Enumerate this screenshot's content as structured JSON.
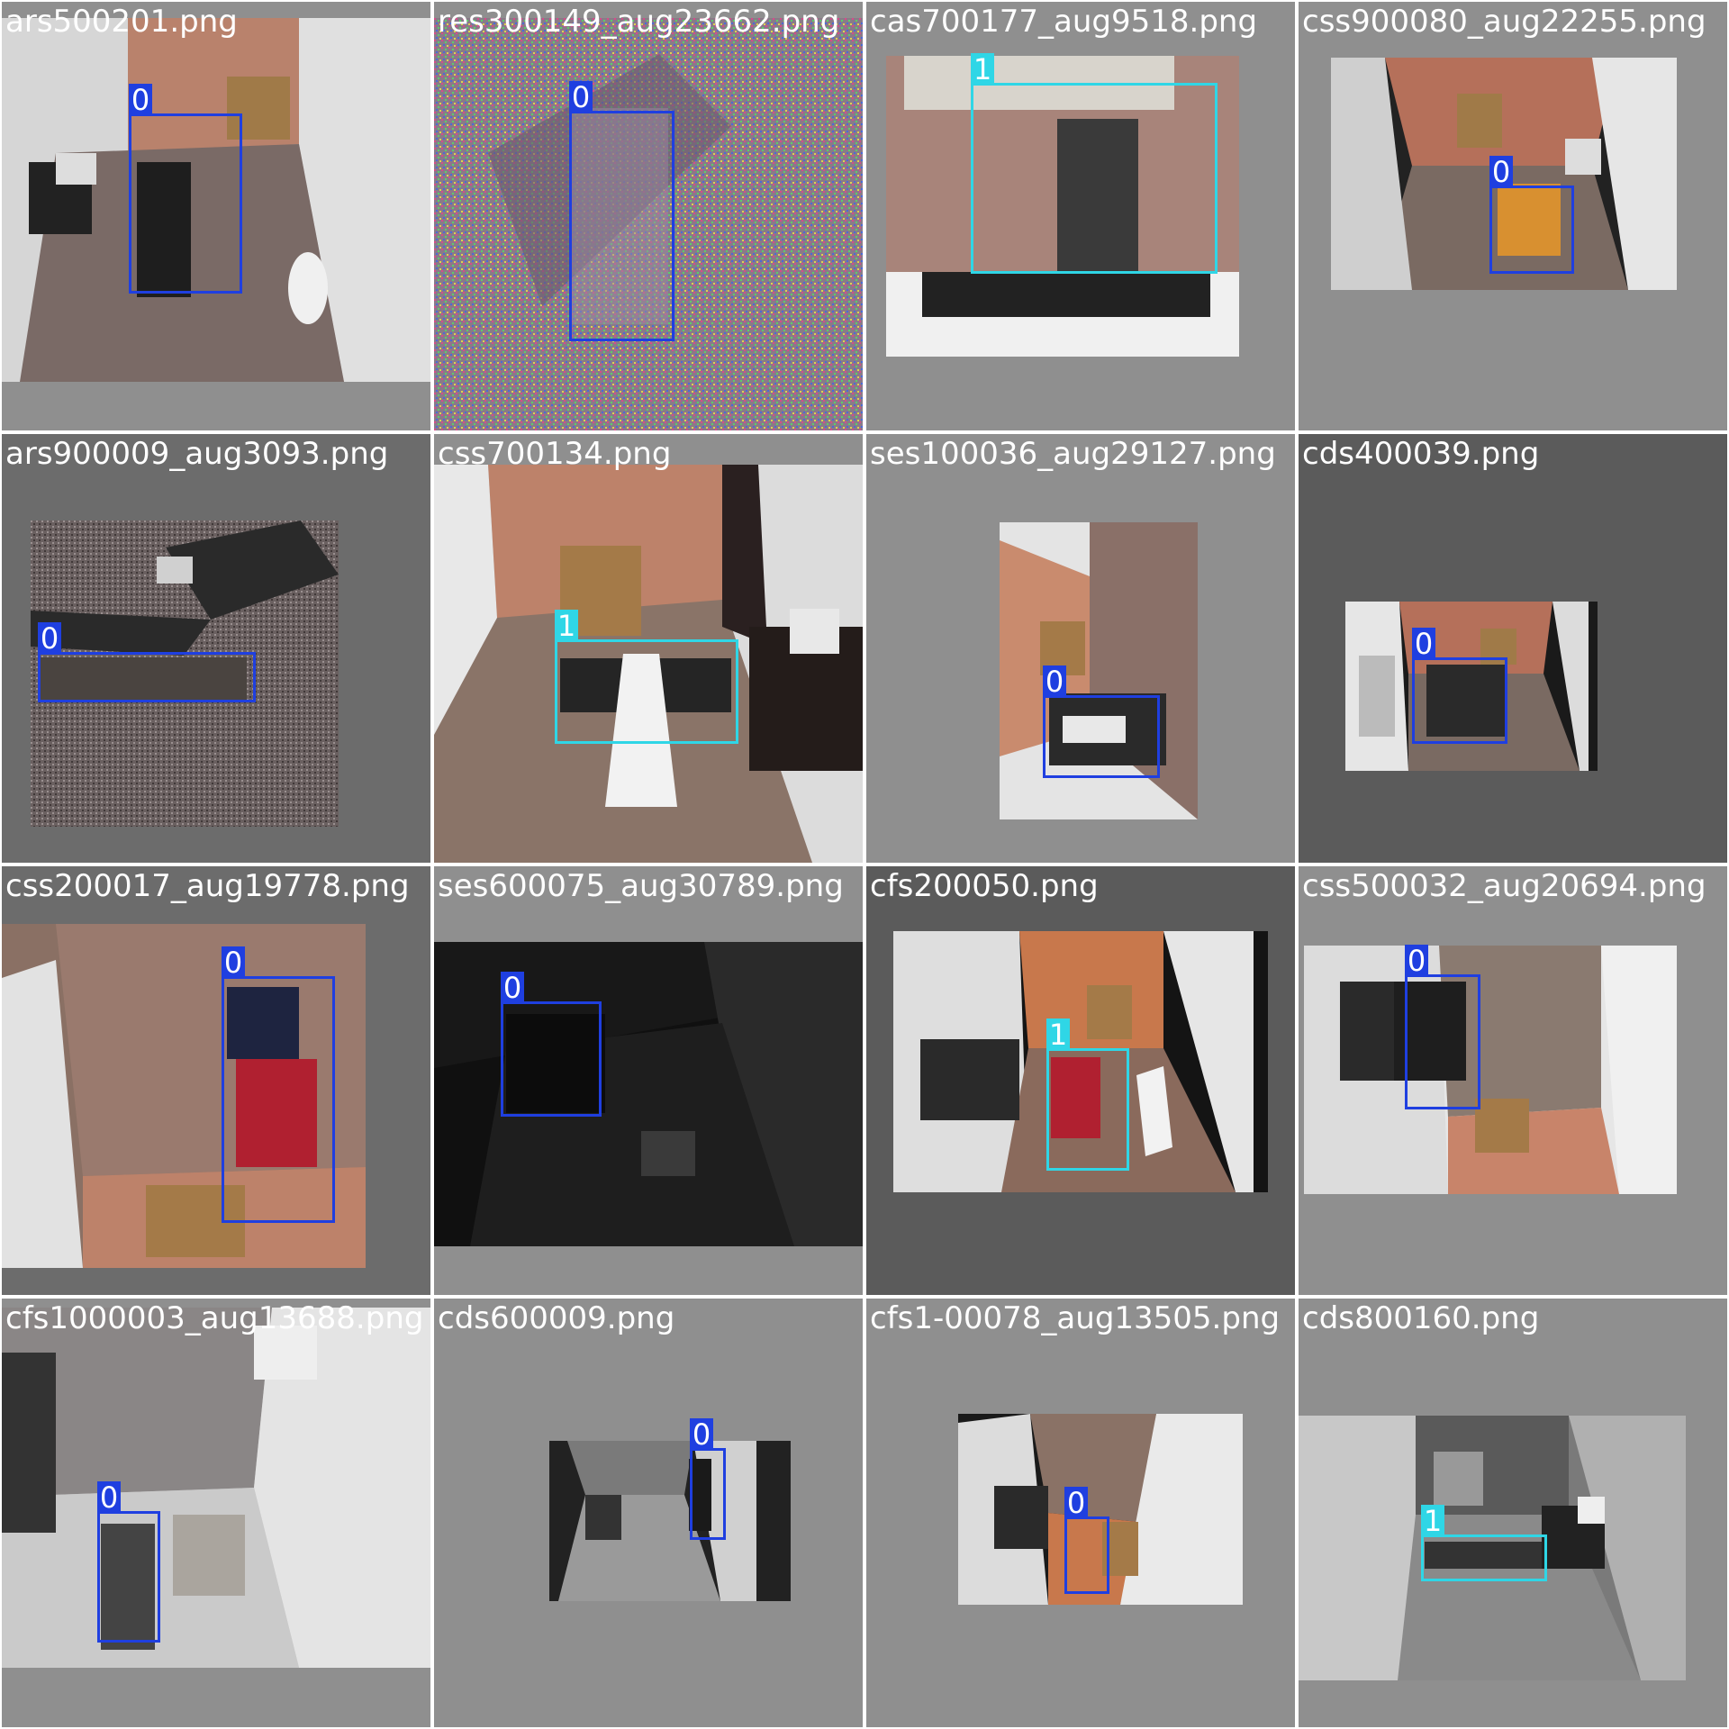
{
  "grid": {
    "tiles": [
      {
        "filename": "ars500201.png",
        "label": "0",
        "cls": "c0"
      },
      {
        "filename": "res300149_aug23662.png",
        "label": "0",
        "cls": "c0"
      },
      {
        "filename": "cas700177_aug9518.png",
        "label": "1",
        "cls": "c1"
      },
      {
        "filename": "css900080_aug22255.png",
        "label": "0",
        "cls": "c0"
      },
      {
        "filename": "ars900009_aug3093.png",
        "label": "0",
        "cls": "c0"
      },
      {
        "filename": "css700134.png",
        "label": "1",
        "cls": "c1"
      },
      {
        "filename": "ses100036_aug29127.png",
        "label": "0",
        "cls": "c0"
      },
      {
        "filename": "cds400039.png",
        "label": "0",
        "cls": "c0"
      },
      {
        "filename": "css200017_aug19778.png",
        "label": "0",
        "cls": "c0"
      },
      {
        "filename": "ses600075_aug30789.png",
        "label": "0",
        "cls": "c0"
      },
      {
        "filename": "cfs200050.png",
        "label": "1",
        "cls": "c1"
      },
      {
        "filename": "css500032_aug20694.png",
        "label": "0",
        "cls": "c0"
      },
      {
        "filename": "cfs1000003_aug13688.png",
        "label": "0",
        "cls": "c0"
      },
      {
        "filename": "cds600009.png",
        "label": "0",
        "cls": "c0"
      },
      {
        "filename": "cfs1-00078_aug13505.png",
        "label": "0",
        "cls": "c0"
      },
      {
        "filename": "cds800160.png",
        "label": "1",
        "cls": "c1"
      }
    ]
  },
  "colors": {
    "class0": "#1f3fe0",
    "class1": "#2fd6e6",
    "tile_bg": "#8f8f8f"
  }
}
